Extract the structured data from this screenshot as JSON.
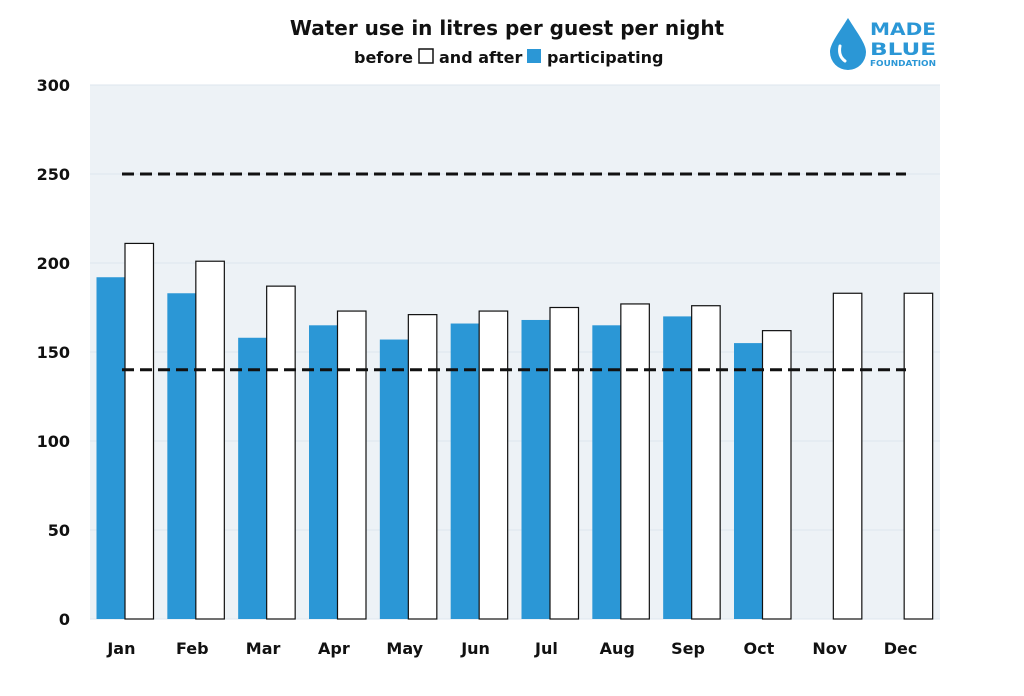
{
  "chart_data": {
    "type": "bar",
    "title": "Water use in litres per guest per night",
    "subtitle_parts": {
      "before": "before",
      "and_after": "and after",
      "participating": "participating"
    },
    "categories": [
      "Jan",
      "Feb",
      "Mar",
      "Apr",
      "May",
      "Jun",
      "Jul",
      "Aug",
      "Sep",
      "Oct",
      "Nov",
      "Dec"
    ],
    "series": [
      {
        "name": "after participating",
        "color": "#2b97d6",
        "values": [
          192,
          183,
          158,
          165,
          157,
          166,
          168,
          165,
          170,
          155,
          null,
          null
        ]
      },
      {
        "name": "before",
        "color": "#ffffff",
        "values": [
          211,
          201,
          187,
          173,
          171,
          173,
          175,
          177,
          176,
          162,
          183,
          183
        ]
      }
    ],
    "reference_lines": [
      250,
      140
    ],
    "ylim": [
      0,
      300
    ],
    "yticks": [
      0,
      50,
      100,
      150,
      200,
      250,
      300
    ],
    "grid": true,
    "plot_background": "#edf2f6",
    "accent_color": "#2b97d6"
  },
  "logo": {
    "line1": "MADE",
    "line2": "BLUE",
    "line3": "FOUNDATION",
    "icon": "water-drop-icon",
    "color": "#2b97d6"
  }
}
